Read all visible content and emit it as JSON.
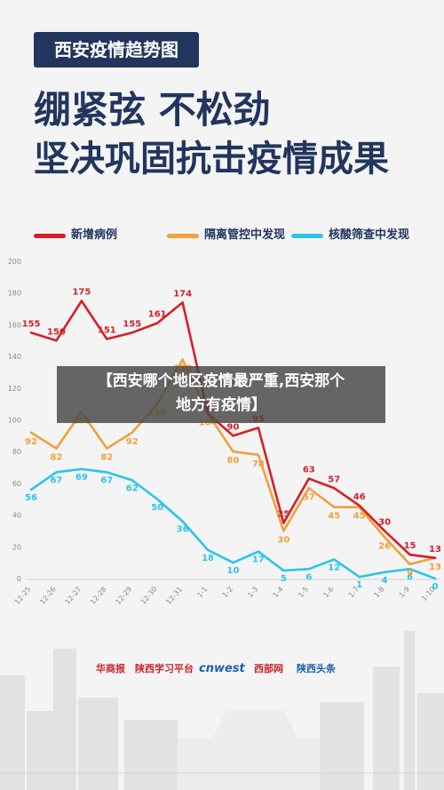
{
  "tag": "西安疫情趋势图",
  "headline": {
    "line1": "绷紧弦  不松劲",
    "line2": "坚决巩固抗击疫情成果"
  },
  "overlay_text": {
    "line1": "【西安哪个地区疫情最严重,西安那个",
    "line2": "地方有疫情】"
  },
  "logos": {
    "a": "华商报",
    "b": "陕西学习平台",
    "c": "cnwest",
    "d": "西部网",
    "e": "陕西头条"
  },
  "colors": {
    "background": "#f4f4f5",
    "navy": "#22355e",
    "red": "#d42027",
    "orange": "#f0a13a",
    "cyan": "#2bc4ea",
    "axis": "#8a8a8a"
  },
  "chart_data": {
    "type": "line",
    "categories": [
      "12-25",
      "12-26",
      "12-27",
      "12-28",
      "12-29",
      "12-30",
      "12-31",
      "1-1",
      "1-2",
      "1-3",
      "1-4",
      "1-5",
      "1-6",
      "1-7",
      "1-8",
      "1-9",
      "1-10"
    ],
    "yticks": [
      "0",
      "20",
      "40",
      "60",
      "80",
      "100",
      "120",
      "140",
      "160",
      "180",
      "200"
    ],
    "ylim": [
      0,
      200
    ],
    "legend_position": "top",
    "series": [
      {
        "name": "新增病例",
        "color": "#d42027",
        "values": [
          155,
          150,
          175,
          151,
          155,
          161,
          174,
          104,
          90,
          95,
          35,
          63,
          57,
          46,
          30,
          15,
          13
        ]
      },
      {
        "name": "隔离管控中发现",
        "color": "#f0a13a",
        "values": [
          92,
          82,
          105,
          82,
          92,
          110,
          138,
          104,
          80,
          78,
          30,
          57,
          45,
          45,
          26,
          9,
          13
        ]
      },
      {
        "name": "核酸筛查中发现",
        "color": "#2bc4ea",
        "values": [
          56,
          67,
          69,
          67,
          62,
          50,
          36,
          18,
          10,
          17,
          5,
          6,
          12,
          1,
          4,
          6,
          0
        ]
      }
    ]
  }
}
